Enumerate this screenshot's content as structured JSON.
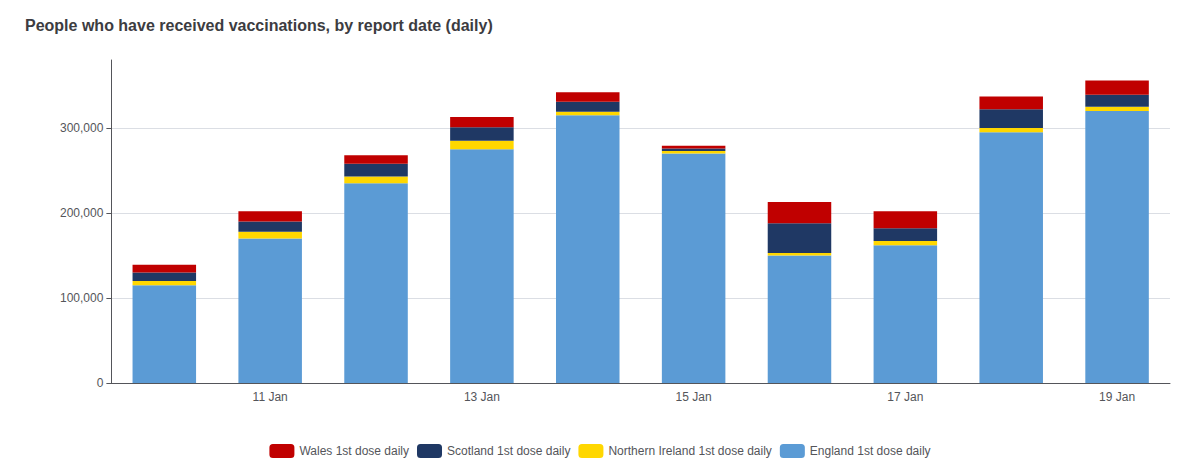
{
  "chart_data": {
    "type": "bar",
    "title": "People who have received vaccinations, by report date (daily)",
    "stacked": true,
    "categories": [
      null,
      "11 Jan",
      null,
      "13 Jan",
      null,
      "15 Jan",
      null,
      "17 Jan",
      null,
      "19 Jan"
    ],
    "series": [
      {
        "name": "England 1st dose daily",
        "color": "#5b9bd5",
        "values": [
          115000,
          170000,
          235000,
          275000,
          315000,
          270000,
          150000,
          162000,
          295000,
          320000
        ]
      },
      {
        "name": "Northern Ireland 1st dose daily",
        "color": "#ffd700",
        "values": [
          5000,
          8000,
          8000,
          10000,
          4000,
          3000,
          3000,
          5000,
          5000,
          5000
        ]
      },
      {
        "name": "Scotland 1st dose daily",
        "color": "#1f3864",
        "values": [
          10000,
          12000,
          15000,
          16000,
          12000,
          3000,
          35000,
          15000,
          22000,
          14000
        ]
      },
      {
        "name": "Wales 1st dose daily",
        "color": "#c00000",
        "values": [
          9000,
          12000,
          10000,
          12000,
          11000,
          3000,
          25000,
          20000,
          15000,
          17000
        ]
      }
    ],
    "ylim": [
      0,
      380000
    ],
    "yticks": [
      0,
      {
        "value": 100000,
        "label": "100,000"
      },
      {
        "value": 200000,
        "label": "200,000"
      },
      {
        "value": 300000,
        "label": "300,000"
      }
    ],
    "grid": true,
    "legend": "bottom"
  }
}
